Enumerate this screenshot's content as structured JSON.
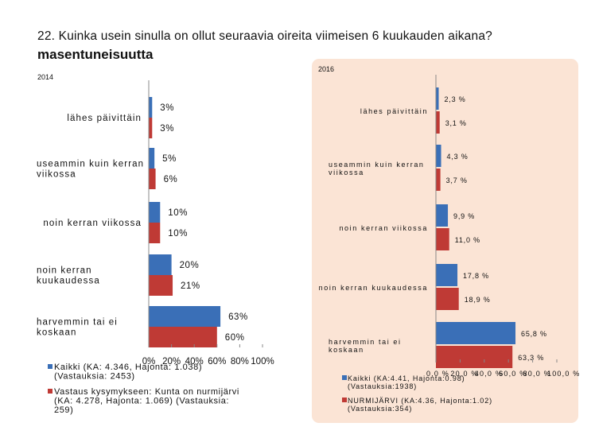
{
  "header": {
    "title": "22. Kuinka usein sinulla on ollut seuraavia oireita viimeisen 6 kuukauden aikana?",
    "subtitle": "masentuneisuutta"
  },
  "colors": {
    "series1": "#3a6fb7",
    "series2": "#bf3a35",
    "panel_bg": "#fbe4d5"
  },
  "chart_data": [
    {
      "type": "bar",
      "orientation": "horizontal",
      "year_label": "2014",
      "categories": [
        "lähes päivittäin",
        "useammin kuin kerran viikossa",
        "noin kerran viikossa",
        "noin kerran kuukaudessa",
        "harvemmin tai ei koskaan"
      ],
      "category_lines": [
        [
          "lähes päivittäin"
        ],
        [
          "useammin kuin kerran",
          "viikossa"
        ],
        [
          "noin kerran viikossa"
        ],
        [
          "noin kerran",
          "kuukaudessa"
        ],
        [
          "harvemmin tai ei",
          "koskaan"
        ]
      ],
      "series": [
        {
          "name": "Kaikki (KA: 4.346, Hajonta: 1.038) (Vastauksia: 2453)",
          "legend_lines": [
            "Kaikki (KA: 4.346, Hajonta: 1.038)",
            "(Vastauksia: 2453)"
          ],
          "values": [
            3,
            5,
            10,
            20,
            63
          ],
          "labels": [
            "3%",
            "5%",
            "10%",
            "20%",
            "63%"
          ]
        },
        {
          "name": "Vastaus kysymykseen: Kunta on nurmijärvi (KA: 4.278, Hajonta: 1.069) (Vastauksia: 259)",
          "legend_lines": [
            "Vastaus kysymykseen: Kunta on nurmijärvi",
            "(KA: 4.278, Hajonta: 1.069) (Vastauksia:",
            "259)"
          ],
          "values": [
            3,
            6,
            10,
            21,
            60
          ],
          "labels": [
            "3%",
            "6%",
            "10%",
            "21%",
            "60%"
          ]
        }
      ],
      "xlim": [
        0,
        100
      ],
      "x_ticks": [
        "0%",
        "20%",
        "40%",
        "60%",
        "80%",
        "100%"
      ],
      "grid": false,
      "legend_position": "bottom"
    },
    {
      "type": "bar",
      "orientation": "horizontal",
      "year_label": "2016",
      "categories": [
        "lähes päivittäin",
        "useammin kuin kerran viikossa",
        "noin kerran viikossa",
        "noin kerran kuukaudessa",
        "harvemmin tai ei koskaan"
      ],
      "category_lines": [
        [
          "lähes päivittäin"
        ],
        [
          "useammin kuin kerran",
          "viikossa"
        ],
        [
          "noin kerran viikossa"
        ],
        [
          "noin kerran kuukaudessa"
        ],
        [
          "harvemmin tai ei",
          "koskaan"
        ]
      ],
      "series": [
        {
          "name": "Kaikki (KA:4.41, Hajonta:0.98) (Vastauksia:1938)",
          "legend_lines": [
            "Kaikki (KA:4.41, Hajonta:0.98)",
            "(Vastauksia:1938)"
          ],
          "values": [
            2.3,
            4.3,
            9.9,
            17.8,
            65.8
          ],
          "labels": [
            "2,3 %",
            "4,3 %",
            "9,9 %",
            "17,8 %",
            "65,8 %"
          ]
        },
        {
          "name": "NURMIJÄRVI (KA:4.36, Hajonta:1.02) (Vastauksia:354)",
          "legend_lines": [
            "NURMIJÄRVI (KA:4.36, Hajonta:1.02)",
            "(Vastauksia:354)"
          ],
          "values": [
            3.1,
            3.7,
            11.0,
            18.9,
            63.3
          ],
          "labels": [
            "3,1 %",
            "3,7 %",
            "11,0 %",
            "18,9 %",
            "63,3 %"
          ]
        }
      ],
      "xlim": [
        0,
        100
      ],
      "x_ticks": [
        "0,0 %",
        "20,0 %",
        "40,0 %",
        "60,0 %",
        "80,0 %",
        "100,0 %"
      ],
      "grid": false,
      "legend_position": "bottom"
    }
  ]
}
